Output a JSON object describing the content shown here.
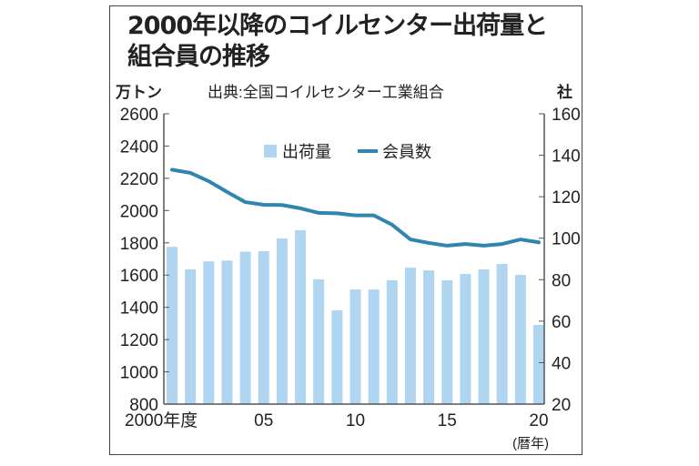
{
  "chart_data": {
    "type": "bar+line",
    "title": "2000年以降のコイルセンター出荷量と組合員の推移",
    "title_lines": [
      "2000年以降のコイルセンター出荷量と",
      "組合員の推移"
    ],
    "source": "出典:全国コイルセンター工業組合",
    "left_axis": {
      "unit": "万トン",
      "ylim": [
        800,
        2600
      ],
      "ticks": [
        "2600",
        "2400",
        "2200",
        "2000",
        "1800",
        "1600",
        "1400",
        "1200",
        "1000",
        "800"
      ]
    },
    "right_axis": {
      "unit": "社",
      "ylim": [
        20,
        160
      ],
      "ticks": [
        "160",
        "140",
        "120",
        "100",
        "80",
        "60",
        "40",
        "20"
      ]
    },
    "x_ticks": [
      {
        "year": 2000,
        "label": "2000年度"
      },
      {
        "year": 2005,
        "label": "05"
      },
      {
        "year": 2010,
        "label": "10"
      },
      {
        "year": 2015,
        "label": "15"
      },
      {
        "year": 2020,
        "label": "20"
      }
    ],
    "x_unit": "(暦年)",
    "x": [
      2000,
      2001,
      2002,
      2003,
      2004,
      2005,
      2006,
      2007,
      2008,
      2009,
      2010,
      2011,
      2012,
      2013,
      2014,
      2015,
      2016,
      2017,
      2018,
      2019,
      2020
    ],
    "legend_placement": "top-center",
    "grid": false,
    "series": [
      {
        "name": "出荷量",
        "type": "bar",
        "axis": "left",
        "color": "#afd5f0",
        "values": [
          1775,
          1635,
          1685,
          1690,
          1745,
          1748,
          1827,
          1878,
          1573,
          1381,
          1511,
          1511,
          1568,
          1646,
          1629,
          1568,
          1607,
          1635,
          1669,
          1601,
          1291
        ]
      },
      {
        "name": "会員数",
        "type": "line",
        "axis": "right",
        "color": "#2e86b0",
        "values": [
          133,
          131.5,
          127.5,
          122.3,
          117.4,
          116.1,
          116,
          114.4,
          112.2,
          112,
          111,
          111,
          106.5,
          99.4,
          97.7,
          96.4,
          97.2,
          96.4,
          97.2,
          99.4,
          98
        ]
      }
    ]
  }
}
